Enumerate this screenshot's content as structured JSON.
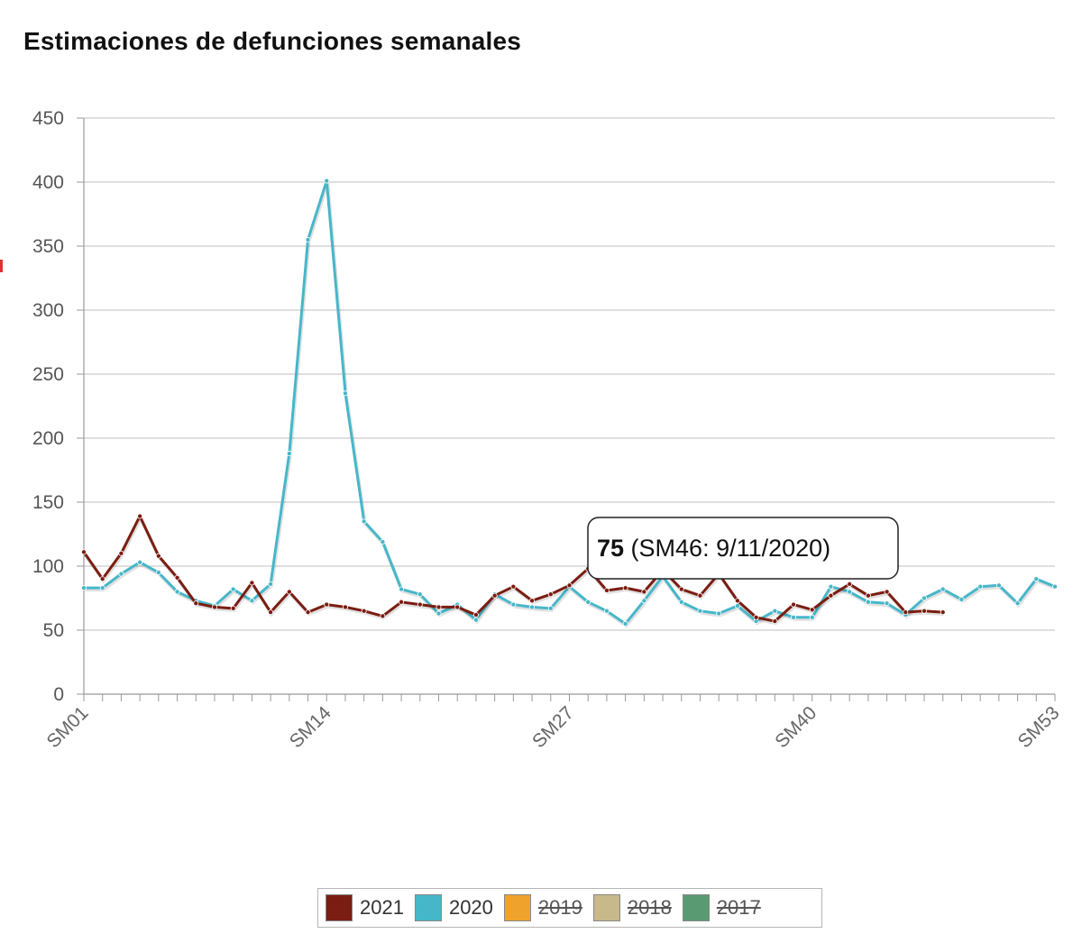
{
  "chart_data": {
    "type": "line",
    "title": "Estimaciones de defunciones semanales",
    "xlabel": "",
    "ylabel": "",
    "ylim": [
      0,
      450
    ],
    "yticks": [
      0,
      50,
      100,
      150,
      200,
      250,
      300,
      350,
      400,
      450
    ],
    "xtick_labels": [
      "SM01",
      "SM14",
      "SM27",
      "SM40",
      "SM53"
    ],
    "grid": "horizontal",
    "legend_placement": "bottom",
    "series": [
      {
        "name": "2021",
        "color": "#7b1d12",
        "visible": true,
        "x": [
          1,
          2,
          3,
          4,
          5,
          6,
          7,
          8,
          9,
          10,
          11,
          12,
          13,
          14,
          15,
          16,
          17,
          18,
          19,
          20,
          21,
          22,
          23,
          24,
          25,
          26,
          27,
          28,
          29,
          30,
          31,
          32,
          33,
          34,
          35,
          36,
          37,
          38,
          39,
          40,
          41,
          42,
          43,
          44,
          45,
          46,
          47
        ],
        "values": [
          111,
          90,
          110,
          139,
          108,
          91,
          71,
          68,
          67,
          87,
          64,
          80,
          64,
          70,
          68,
          65,
          61,
          72,
          70,
          68,
          68,
          62,
          77,
          84,
          73,
          78,
          85,
          98,
          81,
          83,
          80,
          97,
          82,
          77,
          94,
          73,
          60,
          57,
          70,
          66,
          77,
          86,
          77,
          80,
          64,
          65,
          64
        ]
      },
      {
        "name": "2020",
        "color": "#46b7c9",
        "visible": true,
        "x": [
          1,
          2,
          3,
          4,
          5,
          6,
          7,
          8,
          9,
          10,
          11,
          12,
          13,
          14,
          15,
          16,
          17,
          18,
          19,
          20,
          21,
          22,
          23,
          24,
          25,
          26,
          27,
          28,
          29,
          30,
          31,
          32,
          33,
          34,
          35,
          36,
          37,
          38,
          39,
          40,
          41,
          42,
          43,
          44,
          45,
          46,
          47,
          48,
          49,
          50,
          51,
          52,
          53
        ],
        "values": [
          83,
          83,
          94,
          103,
          95,
          80,
          73,
          69,
          82,
          73,
          86,
          188,
          355,
          401,
          235,
          135,
          119,
          82,
          78,
          63,
          70,
          58,
          78,
          70,
          68,
          67,
          84,
          72,
          65,
          55,
          73,
          92,
          72,
          65,
          63,
          69,
          57,
          65,
          60,
          60,
          84,
          80,
          72,
          71,
          62,
          75,
          82,
          74,
          84,
          85,
          71,
          90,
          84
        ]
      },
      {
        "name": "2019",
        "color": "#f0a32c",
        "visible": false,
        "values": []
      },
      {
        "name": "2018",
        "color": "#c8b98a",
        "visible": false,
        "values": []
      },
      {
        "name": "2017",
        "color": "#5a9a72",
        "visible": false,
        "values": []
      }
    ],
    "tooltip": {
      "value": "75",
      "label": " (SM46: 9/11/2020)"
    }
  }
}
